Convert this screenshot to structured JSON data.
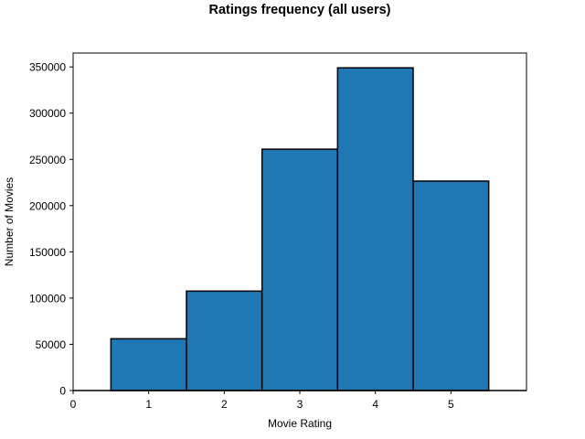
{
  "chart_data": {
    "type": "bar",
    "title": "Ratings frequency (all users)",
    "xlabel": "Movie Rating",
    "ylabel": "Number of Movies",
    "categories": [
      "1",
      "2",
      "3",
      "4",
      "5"
    ],
    "x": [
      1,
      2,
      3,
      4,
      5
    ],
    "values": [
      56000,
      107500,
      261000,
      349000,
      226500
    ],
    "bar_width": 1,
    "xlim": [
      0,
      6
    ],
    "ylim": [
      0,
      365000
    ],
    "x_ticks": [
      0,
      1,
      2,
      3,
      4,
      5
    ],
    "y_ticks": [
      0,
      50000,
      100000,
      150000,
      200000,
      250000,
      300000,
      350000
    ],
    "y_tick_labels": [
      "0",
      "50000",
      "100000",
      "150000",
      "200000",
      "250000",
      "300000",
      "350000"
    ],
    "bar_color": "#1f77b4",
    "edge_color": "#000000",
    "grid": false,
    "legend": "none"
  }
}
